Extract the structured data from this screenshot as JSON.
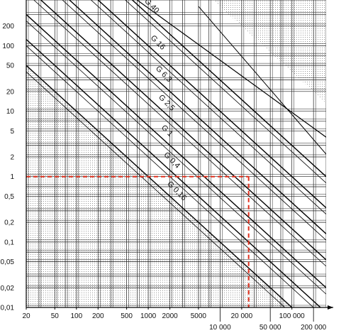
{
  "chart_data": {
    "type": "line",
    "x_scale": "log",
    "y_scale": "log",
    "xlim": [
      20,
      300000
    ],
    "ylim": [
      0.01,
      500
    ],
    "grid": true,
    "shaded_regions": true,
    "x_ticks_top_row": [
      "20",
      "50",
      "100",
      "200",
      "500",
      "1000",
      "2000",
      "5000",
      "20 000",
      "100 000"
    ],
    "x_ticks_bottom_row": [
      "10 000",
      "50 000",
      "200 000"
    ],
    "x_tick_values_top_row": [
      20,
      50,
      100,
      200,
      500,
      1000,
      2000,
      5000,
      20000,
      100000
    ],
    "x_tick_values_bottom_row": [
      10000,
      50000,
      200000
    ],
    "y_ticks": [
      "200",
      "100",
      "50",
      "20",
      "10",
      "5",
      "2",
      "1",
      "0,5",
      "0,2",
      "0,1",
      "0,05",
      "0,02",
      "0,01"
    ],
    "y_tick_values": [
      200,
      100,
      50,
      20,
      10,
      5,
      2,
      1,
      0.5,
      0.2,
      0.1,
      0.05,
      0.02,
      0.01
    ],
    "series": [
      {
        "name": "G 40",
        "k": 300000
      },
      {
        "name": "G 16",
        "k": 100000
      },
      {
        "name": "G 6,3",
        "k": 40000
      },
      {
        "name": "G 2,5",
        "k": 16000
      },
      {
        "name": "G 1",
        "k": 6000
      },
      {
        "name": "G 0,4",
        "k": 2500
      },
      {
        "name": "G 0,16",
        "k": 1000
      }
    ],
    "reference_point": {
      "x": 25000,
      "y": 1,
      "color": "#e0301e"
    }
  }
}
